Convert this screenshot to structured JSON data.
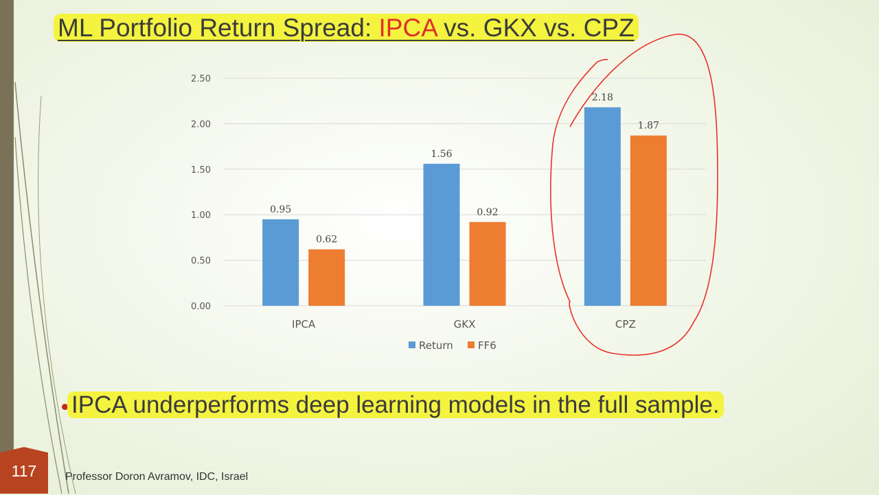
{
  "slide": {
    "title_prefix": "ML Portfolio Return Spread: ",
    "title_red": "IPCA",
    "title_suffix": " vs. GKX vs. CPZ",
    "bullet": "IPCA underperforms deep learning models in the full sample.",
    "page_number": "117",
    "footer": "Professor Doron Avramov, IDC, Israel"
  },
  "colors": {
    "return": "#5b9bd5",
    "ff6": "#ed7d31",
    "annotation": "#e8302a",
    "highlight": "#f3f340"
  },
  "chart_data": {
    "type": "bar",
    "categories": [
      "IPCA",
      "GKX",
      "CPZ"
    ],
    "series": [
      {
        "name": "Return",
        "values": [
          0.95,
          1.56,
          2.18
        ],
        "labels": [
          "0.95",
          "1.56",
          "2.18"
        ]
      },
      {
        "name": "FF6",
        "values": [
          0.62,
          0.92,
          1.87
        ],
        "labels": [
          "0.62",
          "0.92",
          "1.87"
        ]
      }
    ],
    "yticks": [
      "0.00",
      "0.50",
      "1.00",
      "1.50",
      "2.00",
      "2.50"
    ],
    "ylim": [
      0,
      2.5
    ],
    "grid": true,
    "legend": "bottom",
    "xlabel": "",
    "ylabel": ""
  }
}
